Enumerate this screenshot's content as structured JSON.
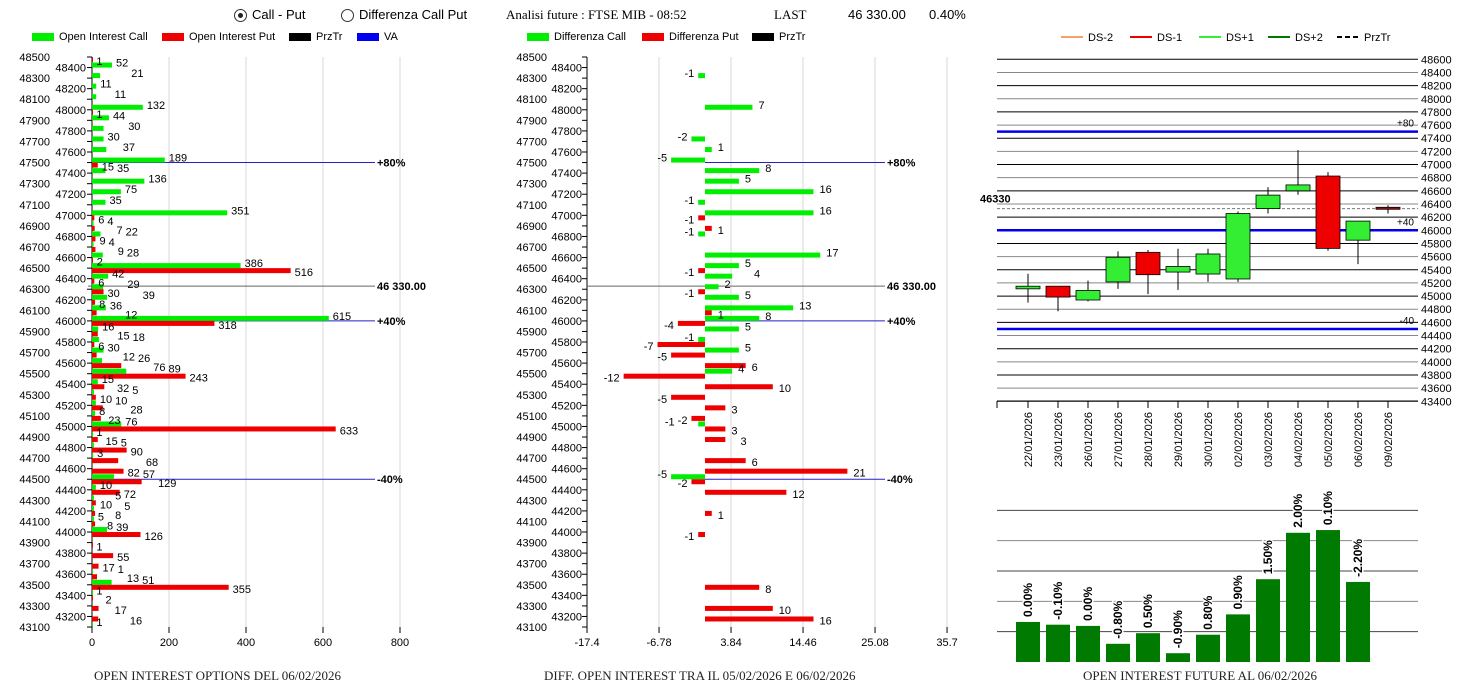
{
  "header": {
    "radio_call_put": "Call - Put",
    "radio_call_put_selected": true,
    "radio_diff": "Differenza Call Put",
    "radio_diff_selected": false,
    "analysis": "Analisi future : FTSE MIB - 08:52",
    "last_label": "LAST",
    "last_value": "46 330.00",
    "change": "0.40%"
  },
  "colors": {
    "call": "#00ee00",
    "put": "#ee0000",
    "prztr": "#000000",
    "va": "#0000ee",
    "ds_minus2": "#f4a070",
    "ds_minus1": "#ee0000",
    "ds_plus1": "#33ee33",
    "ds_plus2": "#007700",
    "future_bar": "#007a00"
  },
  "chart_data": [
    {
      "type": "bar",
      "orientation": "horizontal",
      "title": "OPEN INTEREST OPTIONS DEL 06/02/2026",
      "legend": [
        "Open Interest Call",
        "Open Interest Put",
        "PrzTr",
        "VA"
      ],
      "legend_placement": "top",
      "xlim": [
        0,
        800
      ],
      "xticks": [
        "0",
        "200",
        "400",
        "600",
        "800"
      ],
      "ylim": [
        43100,
        48500
      ],
      "grid": true,
      "reference_lines": [
        {
          "strike": 47500,
          "label": "+80%",
          "kind": "va"
        },
        {
          "strike": 46330,
          "label": "46 330.00",
          "kind": "prztr"
        },
        {
          "strike": 46000,
          "label": "+40%",
          "kind": "va"
        },
        {
          "strike": 44500,
          "label": "-40%",
          "kind": "va"
        }
      ],
      "rows": [
        {
          "strike": 48500,
          "call": 0,
          "put": 1
        },
        {
          "strike": 48400,
          "call": 52,
          "put": 0
        },
        {
          "strike": 48300,
          "call": 21,
          "put": 0
        },
        {
          "strike": 48200,
          "call": 11,
          "put": 0
        },
        {
          "strike": 48100,
          "call": 11,
          "put": 0
        },
        {
          "strike": 48000,
          "call": 132,
          "put": 1
        },
        {
          "strike": 47900,
          "call": 44,
          "put": 0
        },
        {
          "strike": 47800,
          "call": 30,
          "put": 0
        },
        {
          "strike": 47700,
          "call": 30,
          "put": 0
        },
        {
          "strike": 47600,
          "call": 37,
          "put": 0
        },
        {
          "strike": 47500,
          "call": 189,
          "put": 15
        },
        {
          "strike": 47400,
          "call": 35,
          "put": 0
        },
        {
          "strike": 47300,
          "call": 136,
          "put": 0
        },
        {
          "strike": 47200,
          "call": 75,
          "put": 0
        },
        {
          "strike": 47100,
          "call": 35,
          "put": 0
        },
        {
          "strike": 47000,
          "call": 351,
          "put": 6
        },
        {
          "strike": 46900,
          "call": 4,
          "put": 7
        },
        {
          "strike": 46800,
          "call": 22,
          "put": 9
        },
        {
          "strike": 46700,
          "call": 4,
          "put": 9
        },
        {
          "strike": 46600,
          "call": 28,
          "put": 2
        },
        {
          "strike": 46500,
          "call": 386,
          "put": 516
        },
        {
          "strike": 46400,
          "call": 42,
          "put": 6
        },
        {
          "strike": 46300,
          "call": 29,
          "put": 30
        },
        {
          "strike": 46200,
          "call": 39,
          "put": 8
        },
        {
          "strike": 46100,
          "call": 36,
          "put": 12
        },
        {
          "strike": 46000,
          "call": 615,
          "put": 318
        },
        {
          "strike": 45900,
          "call": 16,
          "put": 15
        },
        {
          "strike": 45800,
          "call": 18,
          "put": 6
        },
        {
          "strike": 45700,
          "call": 30,
          "put": 12
        },
        {
          "strike": 45600,
          "call": 26,
          "put": 76
        },
        {
          "strike": 45500,
          "call": 89,
          "put": 243
        },
        {
          "strike": 45400,
          "call": 15,
          "put": 32
        },
        {
          "strike": 45300,
          "call": 5,
          "put": 10
        },
        {
          "strike": 45200,
          "call": 10,
          "put": 28
        },
        {
          "strike": 45100,
          "call": 8,
          "put": 23
        },
        {
          "strike": 45000,
          "call": 76,
          "put": 633
        },
        {
          "strike": 44900,
          "call": 1,
          "put": 15
        },
        {
          "strike": 44800,
          "call": 5,
          "put": 90
        },
        {
          "strike": 44700,
          "call": 3,
          "put": 68
        },
        {
          "strike": 44600,
          "call": 0,
          "put": 82
        },
        {
          "strike": 44500,
          "call": 57,
          "put": 129
        },
        {
          "strike": 44400,
          "call": 10,
          "put": 72
        },
        {
          "strike": 44300,
          "call": 5,
          "put": 10
        },
        {
          "strike": 44200,
          "call": 5,
          "put": 8
        },
        {
          "strike": 44100,
          "call": 5,
          "put": 8
        },
        {
          "strike": 44000,
          "call": 39,
          "put": 126
        },
        {
          "strike": 43900,
          "call": 0,
          "put": 1
        },
        {
          "strike": 43800,
          "call": 0,
          "put": 55
        },
        {
          "strike": 43700,
          "call": 0,
          "put": 17
        },
        {
          "strike": 43600,
          "call": 1,
          "put": 13
        },
        {
          "strike": 43500,
          "call": 51,
          "put": 355
        },
        {
          "strike": 43400,
          "call": 1,
          "put": 2
        },
        {
          "strike": 43300,
          "call": 0,
          "put": 17
        },
        {
          "strike": 43200,
          "call": 0,
          "put": 16
        },
        {
          "strike": 43100,
          "call": 1,
          "put": 0
        }
      ]
    },
    {
      "type": "bar",
      "orientation": "horizontal",
      "title": "DIFF. OPEN INTEREST TRA IL 05/02/2026 E 06/02/2026",
      "legend": [
        "Differenza Call",
        "Differenza Put",
        "PrzTr"
      ],
      "legend_placement": "top",
      "xlim": [
        -17.4,
        35.7
      ],
      "xticks": [
        "-17.4",
        "-6.78",
        "3.84",
        "14.46",
        "25.08",
        "35.7"
      ],
      "ylim": [
        43100,
        48500
      ],
      "grid": true,
      "reference_lines": [
        {
          "strike": 47500,
          "label": "+80%",
          "kind": "va"
        },
        {
          "strike": 46330,
          "label": "46 330.00",
          "kind": "prztr"
        },
        {
          "strike": 46000,
          "label": "+40%",
          "kind": "va"
        },
        {
          "strike": 44500,
          "label": "-40%",
          "kind": "va"
        }
      ],
      "rows": [
        {
          "strike": 48300,
          "call": -1
        },
        {
          "strike": 48000,
          "call": 7
        },
        {
          "strike": 47700,
          "call": -2
        },
        {
          "strike": 47600,
          "call": 1
        },
        {
          "strike": 47500,
          "call": -5
        },
        {
          "strike": 47400,
          "call": 8
        },
        {
          "strike": 47300,
          "call": 5
        },
        {
          "strike": 47200,
          "call": 16
        },
        {
          "strike": 47100,
          "call": -1
        },
        {
          "strike": 47000,
          "call": 16,
          "put": -1
        },
        {
          "strike": 46900,
          "put": 1
        },
        {
          "strike": 46800,
          "call": -1
        },
        {
          "strike": 46600,
          "call": 17
        },
        {
          "strike": 46500,
          "call": 5,
          "put": -1
        },
        {
          "strike": 46400,
          "call": 4
        },
        {
          "strike": 46300,
          "call": 2,
          "put": -1
        },
        {
          "strike": 46200,
          "call": 5
        },
        {
          "strike": 46100,
          "call": 13,
          "put": 1
        },
        {
          "strike": 46000,
          "call": 8,
          "put": -4
        },
        {
          "strike": 45900,
          "call": 5
        },
        {
          "strike": 45800,
          "call": -1,
          "put": -7
        },
        {
          "strike": 45700,
          "call": 5,
          "put": -5
        },
        {
          "strike": 45600,
          "put": 6
        },
        {
          "strike": 45500,
          "call": 4,
          "put": -12
        },
        {
          "strike": 45400,
          "put": 10
        },
        {
          "strike": 45300,
          "put": -5
        },
        {
          "strike": 45200,
          "put": 3
        },
        {
          "strike": 45100,
          "put": -2
        },
        {
          "strike": 45000,
          "call": -1,
          "put": 3
        },
        {
          "strike": 44900,
          "put": 3
        },
        {
          "strike": 44700,
          "put": 6
        },
        {
          "strike": 44600,
          "put": 21
        },
        {
          "strike": 44500,
          "call": -5,
          "put": -2
        },
        {
          "strike": 44400,
          "put": 12
        },
        {
          "strike": 44200,
          "put": 1
        },
        {
          "strike": 44000,
          "put": -1
        },
        {
          "strike": 43500,
          "put": 8
        },
        {
          "strike": 43300,
          "put": 10
        },
        {
          "strike": 43200,
          "put": 16
        }
      ]
    },
    {
      "type": "candlestick",
      "legend": [
        "DS-2",
        "DS-1",
        "DS+1",
        "DS+2",
        "PrzTr"
      ],
      "legend_placement": "top",
      "ylim": [
        43400,
        48600
      ],
      "yticks_step": 200,
      "grid": true,
      "prztr": {
        "value": 46330,
        "label": "46330"
      },
      "levels": [
        {
          "value": 47500,
          "label": "+80"
        },
        {
          "value": 46000,
          "label": "+40"
        },
        {
          "value": 44500,
          "label": "-40"
        }
      ],
      "candles": [
        {
          "date": "22/01/2026",
          "open": 45110,
          "high": 45340,
          "low": 44900,
          "close": 45150
        },
        {
          "date": "23/01/2026",
          "open": 45150,
          "high": 45150,
          "low": 44770,
          "close": 44985
        },
        {
          "date": "26/01/2026",
          "open": 44940,
          "high": 45235,
          "low": 44920,
          "close": 45085
        },
        {
          "date": "27/01/2026",
          "open": 45215,
          "high": 45680,
          "low": 45110,
          "close": 45590
        },
        {
          "date": "28/01/2026",
          "open": 45665,
          "high": 45700,
          "low": 45030,
          "close": 45325
        },
        {
          "date": "29/01/2026",
          "open": 45365,
          "high": 45720,
          "low": 45095,
          "close": 45450
        },
        {
          "date": "30/01/2026",
          "open": 45335,
          "high": 45720,
          "low": 45215,
          "close": 45640
        },
        {
          "date": "02/02/2026",
          "open": 45260,
          "high": 46285,
          "low": 45215,
          "close": 46255
        },
        {
          "date": "03/02/2026",
          "open": 46330,
          "high": 46655,
          "low": 46255,
          "close": 46535
        },
        {
          "date": "04/02/2026",
          "open": 46600,
          "high": 47220,
          "low": 46540,
          "close": 46690
        },
        {
          "date": "05/02/2026",
          "open": 46825,
          "high": 46885,
          "low": 45690,
          "close": 45725
        },
        {
          "date": "06/02/2026",
          "open": 45850,
          "high": 46140,
          "low": 45485,
          "close": 46140
        },
        {
          "date": "09/02/2026",
          "open": 46350,
          "high": 46380,
          "low": 46255,
          "close": 46320
        }
      ]
    },
    {
      "type": "bar",
      "title": "OPEN INTEREST FUTURE AL 06/02/2026",
      "grid": true,
      "note_levels_in_gridline_units": true,
      "bars": [
        {
          "label": "0.00%",
          "level": 1.32
        },
        {
          "label": "-0.10%",
          "level": 1.23
        },
        {
          "label": "0.00%",
          "level": 1.19
        },
        {
          "label": "-0.80%",
          "level": 0.6
        },
        {
          "label": "0.50%",
          "level": 0.95
        },
        {
          "label": "-0.90%",
          "level": 0.29
        },
        {
          "label": "0.80%",
          "level": 0.9
        },
        {
          "label": "0.90%",
          "level": 1.57
        },
        {
          "label": "1.50%",
          "level": 2.73
        },
        {
          "label": "2.00%",
          "level": 4.26
        },
        {
          "label": "0.10%",
          "level": 4.35
        },
        {
          "label": "-2.20%",
          "level": 2.64
        }
      ]
    }
  ]
}
